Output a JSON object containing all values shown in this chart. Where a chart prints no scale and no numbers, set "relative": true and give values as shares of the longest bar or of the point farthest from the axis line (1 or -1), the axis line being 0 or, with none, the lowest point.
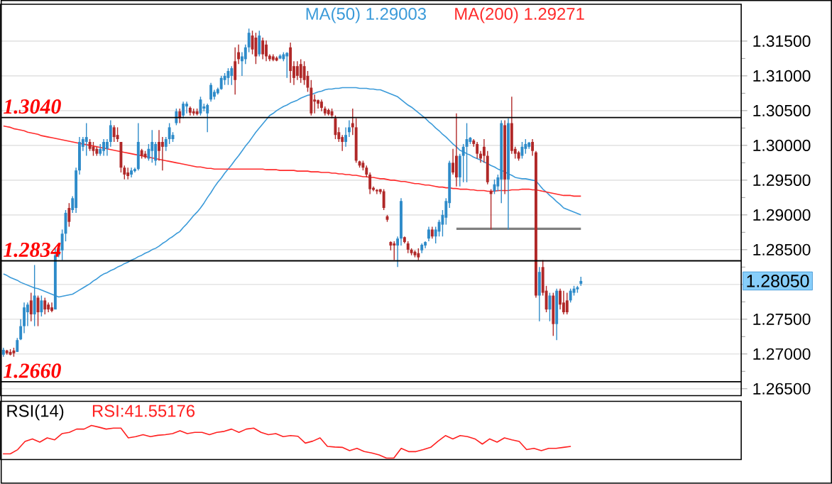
{
  "chart_data": [
    {
      "type": "candlestick",
      "categories": [
        null,
        null,
        null,
        null,
        null,
        null,
        null,
        null,
        null,
        null,
        null,
        null,
        null,
        null,
        null,
        null,
        null,
        null,
        null,
        null,
        null,
        null,
        null,
        null,
        null,
        null,
        null,
        null,
        null,
        null,
        null,
        null,
        null,
        null,
        null,
        null,
        null,
        null,
        null,
        null,
        null,
        null,
        null,
        null,
        null,
        null,
        null,
        null,
        null,
        null,
        null,
        null,
        null,
        null,
        null,
        null,
        null,
        null,
        null,
        null,
        null,
        null,
        null,
        null,
        null,
        null,
        null,
        null,
        null,
        null,
        null,
        null,
        null,
        null,
        null,
        null,
        null,
        null,
        null,
        null,
        null,
        null,
        null,
        null,
        null,
        null,
        null,
        null,
        null,
        null,
        null,
        null,
        null,
        null,
        null,
        null,
        null,
        null,
        null,
        null,
        null,
        null,
        null,
        null,
        null,
        null,
        null,
        null,
        null,
        null,
        null,
        null,
        null,
        null,
        null,
        null,
        null,
        null,
        null,
        null,
        null,
        null,
        null,
        null,
        null,
        null,
        null,
        null,
        null,
        null,
        null,
        null,
        null,
        null,
        null,
        null,
        null,
        null,
        null,
        null,
        null,
        null,
        null,
        null,
        null,
        null,
        null,
        null,
        null,
        null,
        null,
        null,
        null,
        null,
        null,
        null,
        null,
        null,
        null,
        null,
        null,
        null,
        null,
        null,
        null,
        null,
        null,
        null
      ],
      "ohlc": [
        [
          1.2699,
          1.2709,
          1.2696,
          1.2706
        ],
        [
          1.2705,
          1.2706,
          1.2699,
          1.2701
        ],
        [
          1.2703,
          1.2707,
          1.2698,
          1.2699
        ],
        [
          1.2705,
          1.2709,
          1.2696,
          1.2701
        ],
        [
          1.2703,
          1.2723,
          1.2703,
          1.272
        ],
        [
          1.2721,
          1.275,
          1.272,
          1.274
        ],
        [
          1.274,
          1.2774,
          1.273,
          1.2767
        ],
        [
          1.276,
          1.2774,
          1.274,
          1.2771
        ],
        [
          1.2777,
          1.2788,
          1.2747,
          1.2757
        ],
        [
          1.2757,
          1.2828,
          1.274,
          1.2784
        ],
        [
          1.2781,
          1.2784,
          1.274,
          1.276
        ],
        [
          1.276,
          1.2784,
          1.2754,
          1.2777
        ],
        [
          1.2777,
          1.2781,
          1.2757,
          1.2764
        ],
        [
          1.2771,
          1.2774,
          1.276,
          1.2764
        ],
        [
          1.2767,
          1.2774,
          1.276,
          1.2762
        ],
        [
          1.2764,
          1.2852,
          1.2764,
          1.2842
        ],
        [
          1.2842,
          1.2856,
          1.2839,
          1.2852
        ],
        [
          1.2849,
          1.2879,
          1.2835,
          1.2873
        ],
        [
          1.2873,
          1.2907,
          1.2862,
          1.2903
        ],
        [
          1.291,
          1.2917,
          1.2883,
          1.289
        ],
        [
          1.2907,
          1.2927,
          1.2903,
          1.2924
        ],
        [
          1.291,
          1.2968,
          1.2903,
          1.2964
        ],
        [
          1.2964,
          1.3012,
          1.2958,
          1.3005
        ],
        [
          1.2998,
          1.3012,
          1.2992,
          1.3009
        ],
        [
          1.3005,
          1.3032,
          1.2985,
          1.3012
        ],
        [
          1.3005,
          1.3009,
          1.2992,
          1.2995
        ],
        [
          1.2998,
          1.3005,
          1.2985,
          1.2992
        ],
        [
          1.2995,
          1.2998,
          1.2985,
          1.2988
        ],
        [
          1.2988,
          1.3002,
          1.2985,
          1.2995
        ],
        [
          1.2992,
          1.3009,
          1.2985,
          1.3005
        ],
        [
          1.2995,
          1.3009,
          1.2985,
          1.3005
        ],
        [
          1.3005,
          1.3036,
          1.2998,
          1.3029
        ],
        [
          1.3026,
          1.3029,
          1.3005,
          1.3012
        ],
        [
          1.3015,
          1.3026,
          1.3005,
          1.3009
        ],
        [
          1.3005,
          1.3005,
          1.2961,
          1.2968
        ],
        [
          1.2968,
          1.2971,
          1.2951,
          1.2958
        ],
        [
          1.2961,
          1.2968,
          1.2951,
          1.2956
        ],
        [
          1.2958,
          1.2968,
          1.2954,
          1.2964
        ],
        [
          1.2963,
          1.2968,
          1.2961,
          1.2966
        ],
        [
          1.2966,
          1.3032,
          1.2964,
          1.3005
        ],
        [
          1.2993,
          1.2995,
          1.2981,
          1.2985
        ],
        [
          1.2988,
          1.2992,
          1.2981,
          1.2983
        ],
        [
          1.2981,
          1.3002,
          1.2978,
          1.2995
        ],
        [
          1.2992,
          1.3022,
          1.2975,
          1.3005
        ],
        [
          1.2978,
          1.3005,
          1.2971,
          1.3002
        ],
        [
          1.3005,
          1.3022,
          1.2978,
          1.2992
        ],
        [
          1.3005,
          1.3012,
          1.2964,
          1.2998
        ],
        [
          1.2998,
          1.3012,
          1.2992,
          1.3009
        ],
        [
          1.3009,
          1.3032,
          1.3002,
          1.3026
        ],
        [
          1.3009,
          1.3019,
          1.3005,
          1.3015
        ],
        [
          1.3032,
          1.3053,
          1.3029,
          1.3049
        ],
        [
          1.3049,
          1.3053,
          1.3032,
          1.3039
        ],
        [
          1.3043,
          1.3063,
          1.3039,
          1.306
        ],
        [
          1.3056,
          1.3063,
          1.3046,
          1.306
        ],
        [
          1.3054,
          1.3056,
          1.3043,
          1.3047
        ],
        [
          1.3049,
          1.3053,
          1.3043,
          1.3046
        ],
        [
          1.3049,
          1.3053,
          1.3043,
          1.3045
        ],
        [
          1.3046,
          1.307,
          1.3043,
          1.3066
        ],
        [
          1.3053,
          1.306,
          1.3049,
          1.3056
        ],
        [
          1.3046,
          1.306,
          1.3019,
          1.3058
        ],
        [
          1.3066,
          1.309,
          1.3063,
          1.3087
        ],
        [
          1.307,
          1.308,
          1.3066,
          1.3077
        ],
        [
          1.3075,
          1.3083,
          1.3073,
          1.3081
        ],
        [
          1.3081,
          1.31,
          1.308,
          1.3097
        ],
        [
          1.3094,
          1.3104,
          1.3087,
          1.31
        ],
        [
          1.3097,
          1.3111,
          1.3087,
          1.3107
        ],
        [
          1.31,
          1.3114,
          1.3087,
          1.3111
        ],
        [
          1.3121,
          1.3141,
          1.3073,
          1.3094
        ],
        [
          1.3134,
          1.3145,
          1.3117,
          1.3124
        ],
        [
          1.3121,
          1.3134,
          1.31,
          1.3128
        ],
        [
          1.3124,
          1.3145,
          1.3117,
          1.3141
        ],
        [
          1.3141,
          1.3168,
          1.3134,
          1.3162
        ],
        [
          1.3158,
          1.3165,
          1.3131,
          1.3138
        ],
        [
          1.3155,
          1.3162,
          1.3117,
          1.3128
        ],
        [
          1.3131,
          1.3165,
          1.3128,
          1.3158
        ],
        [
          1.3151,
          1.3155,
          1.3124,
          1.3131
        ],
        [
          1.3145,
          1.3151,
          1.3121,
          1.3128
        ],
        [
          1.3129,
          1.3131,
          1.3121,
          1.3124
        ],
        [
          1.3128,
          1.3131,
          1.3121,
          1.3123
        ],
        [
          1.3126,
          1.3128,
          1.3121,
          1.3122
        ],
        [
          1.3125,
          1.3131,
          1.3124,
          1.3129
        ],
        [
          1.3124,
          1.3134,
          1.3121,
          1.3131
        ],
        [
          1.3128,
          1.3134,
          1.3097,
          1.3133
        ],
        [
          1.3141,
          1.3148,
          1.309,
          1.3107
        ],
        [
          1.3114,
          1.3121,
          1.3087,
          1.3097
        ],
        [
          1.3114,
          1.3121,
          1.3094,
          1.31
        ],
        [
          1.3117,
          1.3124,
          1.309,
          1.3097
        ],
        [
          1.3114,
          1.3121,
          1.3087,
          1.3094
        ],
        [
          1.31,
          1.3107,
          1.3077,
          1.3083
        ],
        [
          1.3083,
          1.3094,
          1.3043,
          1.3046
        ],
        [
          1.3066,
          1.3073,
          1.3046,
          1.3063
        ],
        [
          1.3065,
          1.3066,
          1.3053,
          1.306
        ],
        [
          1.3063,
          1.3066,
          1.3049,
          1.3054
        ],
        [
          1.3053,
          1.3056,
          1.3043,
          1.3046
        ],
        [
          1.3051,
          1.3053,
          1.3043,
          1.3045
        ],
        [
          1.3049,
          1.3053,
          1.3039,
          1.3043
        ],
        [
          1.3039,
          1.3043,
          1.3009,
          1.3015
        ],
        [
          1.3019,
          1.3026,
          1.3005,
          1.3009
        ],
        [
          1.3012,
          1.3015,
          1.2992,
          1.3005
        ],
        [
          1.3005,
          1.3026,
          1.2998,
          1.3015
        ],
        [
          1.3019,
          1.3036,
          1.3012,
          1.3026
        ],
        [
          1.3032,
          1.3053,
          1.3015,
          1.3026
        ],
        [
          1.3026,
          1.3039,
          1.2975,
          1.2978
        ],
        [
          1.2977,
          1.2978,
          1.2968,
          1.2971
        ],
        [
          1.2975,
          1.2978,
          1.2964,
          1.2968
        ],
        [
          1.2968,
          1.2971,
          1.2954,
          1.2958
        ],
        [
          1.2958,
          1.2961,
          1.293,
          1.2937
        ],
        [
          1.2939,
          1.2941,
          1.2934,
          1.2936
        ],
        [
          1.2936,
          1.2937,
          1.293,
          1.2934
        ],
        [
          1.2937,
          1.2937,
          1.293,
          1.2933
        ],
        [
          1.2934,
          1.2937,
          1.2907,
          1.291
        ],
        [
          1.2898,
          1.29,
          1.289,
          1.2893
        ],
        [
          1.2861,
          1.2862,
          1.2849,
          1.2856
        ],
        [
          1.2859,
          1.2862,
          1.2835,
          1.2856
        ],
        [
          1.2856,
          1.2869,
          1.2825,
          1.2866
        ],
        [
          1.2866,
          1.2924,
          1.2856,
          1.292
        ],
        [
          1.2868,
          1.2869,
          1.2859,
          1.2861
        ],
        [
          1.2859,
          1.2862,
          1.2845,
          1.285
        ],
        [
          1.285,
          1.2852,
          1.2842,
          1.2845
        ],
        [
          1.2847,
          1.2849,
          1.2839,
          1.2842
        ],
        [
          1.2845,
          1.2852,
          1.2835,
          1.2839
        ],
        [
          1.2849,
          1.2859,
          1.2845,
          1.2857
        ],
        [
          1.2856,
          1.2862,
          1.2852,
          1.2861
        ],
        [
          1.2866,
          1.2883,
          1.2862,
          1.2879
        ],
        [
          1.2879,
          1.2883,
          1.2866,
          1.2869
        ],
        [
          1.2869,
          1.2883,
          1.2859,
          1.2879
        ],
        [
          1.2876,
          1.2893,
          1.2869,
          1.289
        ],
        [
          1.2886,
          1.2907,
          1.2869,
          1.29
        ],
        [
          1.2896,
          1.2924,
          1.2886,
          1.292
        ],
        [
          1.2917,
          1.2978,
          1.291,
          1.2975
        ],
        [
          1.2975,
          1.2995,
          1.2958,
          1.2961
        ],
        [
          1.2985,
          1.3046,
          1.2941,
          1.2954
        ],
        [
          1.2954,
          1.2988,
          1.2941,
          1.2985
        ],
        [
          1.2985,
          1.3002,
          1.2947,
          1.2998
        ],
        [
          1.2998,
          1.3032,
          1.2947,
          1.3009
        ],
        [
          1.3005,
          1.3012,
          1.3002,
          1.3011
        ],
        [
          1.3007,
          1.3009,
          1.2998,
          1.3002
        ],
        [
          1.3002,
          1.3005,
          1.2981,
          1.2988
        ],
        [
          1.2988,
          1.2992,
          1.2975,
          1.2981
        ],
        [
          1.2998,
          1.3009,
          1.2975,
          1.2985
        ],
        [
          1.2985,
          1.2992,
          1.2944,
          1.2947
        ],
        [
          1.2934,
          1.2937,
          1.2879,
          1.293
        ],
        [
          1.2934,
          1.2951,
          1.293,
          1.2944
        ],
        [
          1.2941,
          1.2958,
          1.2934,
          1.2954
        ],
        [
          1.2951,
          1.3036,
          1.2917,
          1.3032
        ],
        [
          1.3029,
          1.3036,
          1.293,
          1.2951
        ],
        [
          1.2951,
          1.3039,
          1.2879,
          1.3032
        ],
        [
          1.3032,
          1.307,
          1.2988,
          1.2992
        ],
        [
          1.2995,
          1.2998,
          1.2981,
          1.2988
        ],
        [
          1.299,
          1.2992,
          1.2978,
          1.2981
        ],
        [
          1.2985,
          1.3005,
          1.2981,
          1.2998
        ],
        [
          1.2995,
          1.3009,
          1.2988,
          1.3002
        ],
        [
          1.2998,
          1.3005,
          1.2995,
          1.3004
        ],
        [
          1.3005,
          1.3009,
          1.2985,
          1.2992
        ],
        [
          1.299,
          1.2992,
          1.2781,
          1.2784
        ],
        [
          1.2784,
          1.2825,
          1.2747,
          1.2818
        ],
        [
          1.2825,
          1.2835,
          1.2784,
          1.2788
        ],
        [
          1.2791,
          1.2798,
          1.276,
          1.2764
        ],
        [
          1.2764,
          1.2788,
          1.2747,
          1.2784
        ],
        [
          1.2784,
          1.2788,
          1.2726,
          1.2743
        ],
        [
          1.2743,
          1.2794,
          1.272,
          1.2791
        ],
        [
          1.2791,
          1.2794,
          1.2764,
          1.2771
        ],
        [
          1.2774,
          1.2791,
          1.2757,
          1.276
        ],
        [
          1.2777,
          1.2788,
          1.2757,
          1.276
        ],
        [
          1.2777,
          1.2794,
          1.2774,
          1.2791
        ],
        [
          1.2788,
          1.2798,
          1.2784,
          1.2794
        ],
        [
          1.2793,
          1.2798,
          1.2788,
          1.2796
        ],
        [
          1.2801,
          1.2811,
          1.2798,
          1.2805
        ]
      ],
      "colors": [
        "#2e8bc9",
        "#b02828",
        "#b02828",
        "#b02828",
        "#2e8bc9",
        "#2e8bc9",
        "#2e8bc9",
        "#2e8bc9",
        "#b02828",
        "#2e8bc9",
        "#b02828",
        "#2e8bc9",
        "#b02828",
        "#b02828",
        "#b02828",
        "#2e8bc9",
        "#2e8bc9",
        "#2e8bc9",
        "#2e8bc9",
        "#b02828",
        "#2e8bc9",
        "#2e8bc9",
        "#2e8bc9",
        "#2e8bc9",
        "#2e8bc9",
        "#b02828",
        "#b02828",
        "#b02828",
        "#2e8bc9",
        "#2e8bc9",
        "#2e8bc9",
        "#2e8bc9",
        "#b02828",
        "#b02828",
        "#b02828",
        "#b02828",
        "#b02828",
        "#2e8bc9",
        "#2e8bc9",
        "#2e8bc9",
        "#b02828",
        "#b02828",
        "#2e8bc9",
        "#2e8bc9",
        "#2e8bc9",
        "#b02828",
        "#b02828",
        "#2e8bc9",
        "#2e8bc9",
        "#2e8bc9",
        "#2e8bc9",
        "#b02828",
        "#2e8bc9",
        "#2e8bc9",
        "#b02828",
        "#b02828",
        "#b02828",
        "#2e8bc9",
        "#2e8bc9",
        "#2e8bc9",
        "#2e8bc9",
        "#2e8bc9",
        "#2e8bc9",
        "#2e8bc9",
        "#2e8bc9",
        "#2e8bc9",
        "#2e8bc9",
        "#b02828",
        "#b02828",
        "#2e8bc9",
        "#2e8bc9",
        "#2e8bc9",
        "#b02828",
        "#b02828",
        "#2e8bc9",
        "#b02828",
        "#b02828",
        "#b02828",
        "#b02828",
        "#b02828",
        "#2e8bc9",
        "#2e8bc9",
        "#2e8bc9",
        "#b02828",
        "#b02828",
        "#b02828",
        "#b02828",
        "#b02828",
        "#b02828",
        "#b02828",
        "#b02828",
        "#b02828",
        "#b02828",
        "#b02828",
        "#b02828",
        "#b02828",
        "#b02828",
        "#b02828",
        "#b02828",
        "#2e8bc9",
        "#2e8bc9",
        "#b02828",
        "#b02828",
        "#b02828",
        "#b02828",
        "#b02828",
        "#b02828",
        "#b02828",
        "#b02828",
        "#b02828",
        "#b02828",
        "#b02828",
        "#b02828",
        "#b02828",
        "#2e8bc9",
        "#2e8bc9",
        "#b02828",
        "#b02828",
        "#b02828",
        "#b02828",
        "#b02828",
        "#2e8bc9",
        "#2e8bc9",
        "#2e8bc9",
        "#b02828",
        "#2e8bc9",
        "#2e8bc9",
        "#2e8bc9",
        "#2e8bc9",
        "#2e8bc9",
        "#b02828",
        "#b02828",
        "#2e8bc9",
        "#2e8bc9",
        "#2e8bc9",
        "#2e8bc9",
        "#b02828",
        "#b02828",
        "#b02828",
        "#b02828",
        "#b02828",
        "#b02828",
        "#2e8bc9",
        "#2e8bc9",
        "#2e8bc9",
        "#b02828",
        "#2e8bc9",
        "#b02828",
        "#b02828",
        "#b02828",
        "#2e8bc9",
        "#2e8bc9",
        "#2e8bc9",
        "#b02828",
        "#b02828",
        "#2e8bc9",
        "#b02828",
        "#b02828",
        "#2e8bc9",
        "#b02828",
        "#2e8bc9",
        "#b02828",
        "#b02828",
        "#b02828",
        "#2e8bc9",
        "#2e8bc9",
        "#2e8bc9",
        "#2e8bc9"
      ],
      "series": [
        {
          "name": "MA(50)  1.29003",
          "type": "line",
          "color": "#3a9ad9",
          "values": [
            1.2815,
            1.2813,
            1.281,
            1.2808,
            1.2806,
            1.2803,
            1.2801,
            1.2799,
            1.2797,
            1.2795,
            1.2794,
            1.2792,
            1.279,
            1.2788,
            1.2786,
            1.2784,
            1.2782,
            1.2783,
            1.2784,
            1.2785,
            1.2786,
            1.2789,
            1.2792,
            1.2795,
            1.2798,
            1.2801,
            1.2805,
            1.2808,
            1.2812,
            1.2815,
            1.2817,
            1.282,
            1.2822,
            1.2825,
            1.2827,
            1.283,
            1.2832,
            1.2835,
            1.2837,
            1.284,
            1.2842,
            1.2845,
            1.2847,
            1.285,
            1.2852,
            1.2855,
            1.2859,
            1.2862,
            1.2866,
            1.2869,
            1.2873,
            1.2876,
            1.2882,
            1.2887,
            1.2893,
            1.2899,
            1.2904,
            1.291,
            1.2917,
            1.2925,
            1.2932,
            1.294,
            1.2947,
            1.2953,
            1.296,
            1.2966,
            1.2972,
            1.2979,
            1.2985,
            1.2992,
            1.2999,
            1.3005,
            1.3012,
            1.3019,
            1.3025,
            1.3031,
            1.3037,
            1.3043,
            1.3046,
            1.305,
            1.3053,
            1.3056,
            1.3058,
            1.3061,
            1.3063,
            1.3065,
            1.3068,
            1.307,
            1.3072,
            1.3073,
            1.3075,
            1.3077,
            1.3078,
            1.308,
            1.3081,
            1.3081,
            1.3082,
            1.3082,
            1.3083,
            1.3083,
            1.3083,
            1.3083,
            1.3083,
            1.3082,
            1.3082,
            1.3082,
            1.3081,
            1.3081,
            1.308,
            1.308,
            1.3078,
            1.3076,
            1.3074,
            1.3072,
            1.307,
            1.3066,
            1.3062,
            1.3058,
            1.3055,
            1.3051,
            1.3047,
            1.3043,
            1.3039,
            1.3034,
            1.303,
            1.3025,
            1.3021,
            1.3016,
            1.3012,
            1.3007,
            1.3002,
            1.2998,
            1.2993,
            1.2991,
            1.2988,
            1.2986,
            1.2983,
            1.2981,
            1.2979,
            1.2976,
            1.2974,
            1.2971,
            1.2969,
            1.2966,
            1.2964,
            1.2962,
            1.2959,
            1.2957,
            1.2954,
            1.2953,
            1.2952,
            1.2952,
            1.2951,
            1.295,
            1.2949,
            1.2943,
            1.2937,
            1.2933,
            1.2928,
            1.2924,
            1.2919,
            1.2915,
            1.291,
            1.2908,
            1.2906,
            1.2904,
            1.2902,
            1.29
          ]
        },
        {
          "name": "MA(200)  1.29271",
          "type": "line",
          "color": "#ff2a2a",
          "values": [
            1.3028,
            1.3027,
            1.3026,
            1.3024,
            1.3023,
            1.3022,
            1.3021,
            1.3019,
            1.3018,
            1.3017,
            1.3016,
            1.3014,
            1.3013,
            1.3012,
            1.3011,
            1.301,
            1.3009,
            1.3008,
            1.3007,
            1.3006,
            1.3005,
            1.3004,
            1.3003,
            1.3002,
            1.3001,
            1.3,
            1.2999,
            1.2998,
            1.2997,
            1.2996,
            1.2995,
            1.2994,
            1.2993,
            1.2992,
            1.2991,
            1.299,
            1.2989,
            1.2988,
            1.2987,
            1.2986,
            1.2985,
            1.2984,
            1.2983,
            1.2982,
            1.2981,
            1.298,
            1.2979,
            1.2978,
            1.2977,
            1.2976,
            1.2975,
            1.2974,
            1.2973,
            1.2972,
            1.2971,
            1.297,
            1.2969,
            1.2969,
            1.2968,
            1.2967,
            1.2967,
            1.2966,
            1.2966,
            1.2966,
            1.2966,
            1.2966,
            1.2966,
            1.2966,
            1.2966,
            1.2966,
            1.2966,
            1.2966,
            1.2966,
            1.2966,
            1.2966,
            1.2966,
            1.2965,
            1.2965,
            1.2965,
            1.2965,
            1.2964,
            1.2964,
            1.2964,
            1.2964,
            1.2964,
            1.2963,
            1.2963,
            1.2963,
            1.2963,
            1.2962,
            1.2962,
            1.2962,
            1.2961,
            1.2961,
            1.2961,
            1.296,
            1.296,
            1.2959,
            1.2959,
            1.2958,
            1.2958,
            1.2957,
            1.2957,
            1.2956,
            1.2955,
            1.2955,
            1.2954,
            1.2954,
            1.2953,
            1.2952,
            1.2952,
            1.2951,
            1.295,
            1.295,
            1.2949,
            1.2948,
            1.2948,
            1.2947,
            1.2946,
            1.2945,
            1.2945,
            1.2944,
            1.2943,
            1.2943,
            1.2942,
            1.2941,
            1.294,
            1.294,
            1.2939,
            1.2939,
            1.2938,
            1.2938,
            1.2937,
            1.2937,
            1.2937,
            1.2936,
            1.2936,
            1.2935,
            1.2935,
            1.2935,
            1.2934,
            1.2934,
            1.2934,
            1.2935,
            1.2935,
            1.2935,
            1.2935,
            1.2936,
            1.2936,
            1.2936,
            1.2937,
            1.2937,
            1.2937,
            1.2936,
            1.2936,
            1.2935,
            1.2934,
            1.2933,
            1.2932,
            1.2931,
            1.293,
            1.2929,
            1.2928,
            1.2928,
            1.2928,
            1.2927,
            1.2927,
            1.2927
          ]
        },
        {
          "type": "line",
          "color": "#808080",
          "values": [
            null,
            null,
            null,
            null,
            null,
            null,
            null,
            null,
            null,
            null,
            null,
            null,
            null,
            null,
            null,
            null,
            null,
            null,
            null,
            null,
            null,
            null,
            null,
            null,
            null,
            null,
            null,
            null,
            null,
            null,
            null,
            null,
            null,
            null,
            null,
            null,
            null,
            null,
            null,
            null,
            null,
            null,
            null,
            null,
            null,
            null,
            null,
            null,
            null,
            null,
            null,
            null,
            null,
            null,
            null,
            null,
            null,
            null,
            null,
            null,
            null,
            null,
            null,
            null,
            null,
            null,
            null,
            null,
            null,
            null,
            null,
            null,
            null,
            null,
            null,
            null,
            null,
            null,
            null,
            null,
            null,
            null,
            null,
            null,
            null,
            null,
            null,
            null,
            null,
            null,
            null,
            null,
            null,
            null,
            null,
            null,
            null,
            null,
            null,
            null,
            null,
            null,
            null,
            null,
            null,
            null,
            null,
            null,
            null,
            null,
            null,
            null,
            null,
            null,
            null,
            null,
            null,
            null,
            null,
            null,
            null,
            null,
            null,
            null,
            null,
            null,
            null,
            null,
            null,
            null,
            null,
            1.288,
            1.288,
            1.288,
            1.288,
            1.288,
            1.288,
            1.288,
            1.288,
            1.288,
            1.288,
            1.288,
            1.288,
            1.288,
            1.288,
            1.288,
            1.288,
            1.288,
            1.288,
            1.288,
            1.288,
            1.288,
            1.288,
            1.288,
            1.288,
            1.288,
            1.288,
            1.288,
            1.288,
            1.288,
            1.288,
            1.288,
            1.288,
            1.288,
            1.288,
            1.288,
            1.288,
            1.288
          ]
        }
      ],
      "ylim": [
        1.264,
        1.3203
      ],
      "yticks": [
        {
          "value": 1.265,
          "label": "1.26500"
        },
        {
          "value": 1.27,
          "label": "1.27000"
        },
        {
          "value": 1.275,
          "label": "1.27500"
        },
        {
          "value": 1.28,
          "label": null
        },
        {
          "value": 1.285,
          "label": "1.28500"
        },
        {
          "value": 1.29,
          "label": "1.29000"
        },
        {
          "value": 1.295,
          "label": "1.29500"
        },
        {
          "value": 1.3,
          "label": "1.30000"
        },
        {
          "value": 1.305,
          "label": "1.30500"
        },
        {
          "value": 1.31,
          "label": "1.31000"
        },
        {
          "value": 1.315,
          "label": "1.31500"
        }
      ],
      "grid": "y",
      "tick_labels": "y",
      "legend": "top",
      "ref_lines": [
        {
          "axis": "y",
          "value": 1.304,
          "label": "1.3040",
          "color": "#000000"
        },
        {
          "axis": "y",
          "value": 1.2834,
          "label": "1.2834",
          "color": "#000000"
        },
        {
          "axis": "y",
          "value": 1.266,
          "label": "1.2660",
          "color": "#000000"
        }
      ],
      "annotations": [
        "1.28050"
      ]
    },
    {
      "type": "line",
      "title": "RSI(14)",
      "relative": true,
      "tick_labels": false,
      "categories": [
        null,
        null,
        null,
        null,
        null,
        null,
        null,
        null,
        null,
        null,
        null,
        null,
        null,
        null,
        null,
        null,
        null,
        null,
        null,
        null,
        null,
        null,
        null,
        null,
        null,
        null,
        null,
        null,
        null,
        null,
        null,
        null,
        null,
        null,
        null,
        null,
        null,
        null,
        null,
        null,
        null,
        null,
        null,
        null,
        null,
        null,
        null,
        null,
        null,
        null,
        null,
        null,
        null,
        null,
        null,
        null,
        null,
        null,
        null,
        null,
        null,
        null,
        null,
        null,
        null,
        null,
        null,
        null,
        null,
        null,
        null,
        null,
        null,
        null,
        null,
        null,
        null,
        null
      ],
      "series": [
        {
          "name": "RSI:41.55176",
          "color": "#ff2020",
          "values": [
            0.13,
            0.13,
            0.26,
            0.51,
            0.59,
            0.49,
            0.62,
            0.56,
            0.75,
            0.79,
            0.89,
            0.89,
            1,
            0.95,
            0.89,
            0.92,
            0.92,
            0.62,
            0.66,
            0.72,
            0.66,
            0.7,
            0.72,
            0.75,
            0.84,
            0.75,
            0.79,
            0.79,
            0.72,
            0.79,
            0.82,
            0.89,
            0.79,
            0.89,
            0.92,
            0.79,
            0.72,
            0.75,
            0.66,
            0.69,
            0.67,
            0.46,
            0.52,
            0.62,
            0.36,
            0.34,
            0.33,
            0.23,
            0.3,
            0.2,
            0.16,
            0.1,
            0,
            0,
            0.3,
            0.2,
            0.2,
            0.26,
            0.33,
            0.52,
            0.69,
            0.59,
            0.69,
            0.66,
            0.59,
            0.43,
            0.59,
            0.49,
            0.62,
            0.56,
            0.51,
            0.26,
            0.3,
            0.23,
            0.3,
            0.3,
            0.33,
            0.36
          ]
        }
      ]
    }
  ]
}
